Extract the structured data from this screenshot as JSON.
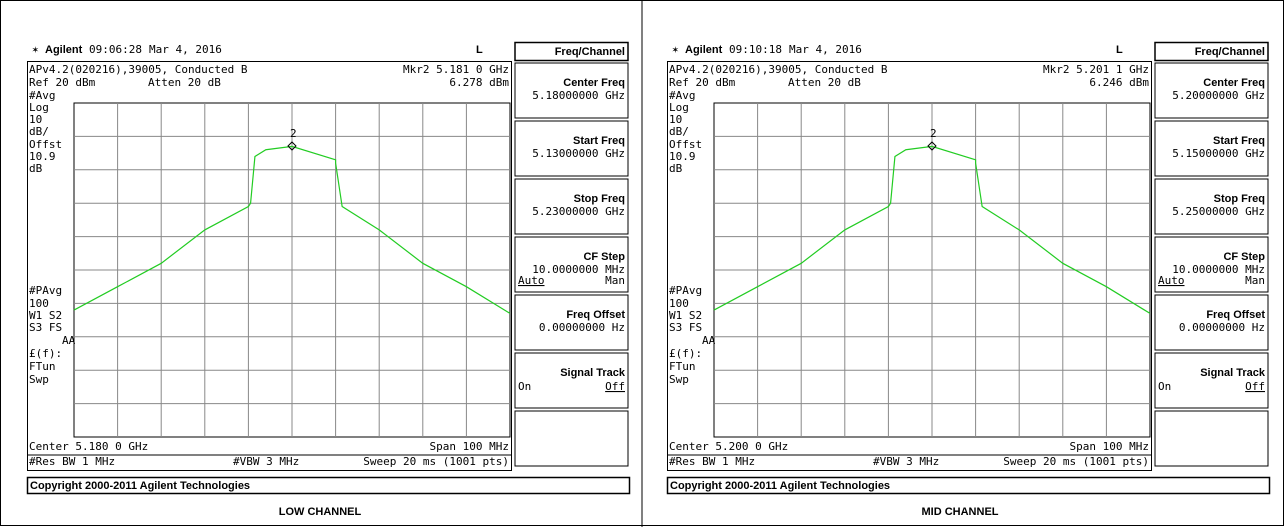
{
  "panels": [
    {
      "header": {
        "brand": "Agilent",
        "time": "09:06:28",
        "date": "Mar 4, 2016",
        "mode": "L"
      },
      "info": {
        "title": "APv4.2(020216),39005, Conducted B",
        "marker": "Mkr2  5.181 0 GHz",
        "ref": "Ref 20 dBm",
        "atten": "Atten 20 dB",
        "marker_value": "6.278 dBm"
      },
      "side_labels": [
        "#Avg",
        "Log",
        "10",
        "dB/",
        "Offst",
        "10.9",
        "dB",
        "#PAvg",
        "100",
        "W1  S2",
        "S3  FS",
        "AA",
        "£(f):",
        "FTun",
        "Swp"
      ],
      "marker_label": "2",
      "footer": {
        "center": "Center 5.180 0 GHz",
        "span": "Span 100 MHz",
        "res_bw": "#Res BW 1 MHz",
        "vbw": "#VBW 3 MHz",
        "sweep": "Sweep 20 ms (1001 pts)"
      },
      "softkeys": {
        "title": "Freq/Channel",
        "keys": [
          {
            "label": "Center Freq",
            "value": "5.18000000 GHz"
          },
          {
            "label": "Start Freq",
            "value": "5.13000000 GHz"
          },
          {
            "label": "Stop Freq",
            "value": "5.23000000 GHz"
          },
          {
            "label": "CF Step",
            "value": "10.0000000 MHz",
            "options": [
              "Auto",
              "Man"
            ]
          },
          {
            "label": "Freq Offset",
            "value": "0.00000000  Hz"
          },
          {
            "label": "Signal Track",
            "options": [
              "On",
              "Off"
            ]
          }
        ]
      },
      "copyright": "Copyright 2000-2011 Agilent Technologies",
      "caption": "LOW CHANNEL"
    },
    {
      "header": {
        "brand": "Agilent",
        "time": "09:10:18",
        "date": "Mar 4, 2016",
        "mode": "L"
      },
      "info": {
        "title": "APv4.2(020216),39005, Conducted B",
        "marker": "Mkr2  5.201 1 GHz",
        "ref": "Ref 20 dBm",
        "atten": "Atten 20 dB",
        "marker_value": "6.246 dBm"
      },
      "side_labels": [
        "#Avg",
        "Log",
        "10",
        "dB/",
        "Offst",
        "10.9",
        "dB",
        "#PAvg",
        "100",
        "W1  S2",
        "S3  FS",
        "AA",
        "£(f):",
        "FTun",
        "Swp"
      ],
      "marker_label": "2",
      "footer": {
        "center": "Center 5.200 0 GHz",
        "span": "Span 100 MHz",
        "res_bw": "#Res BW 1 MHz",
        "vbw": "#VBW 3 MHz",
        "sweep": "Sweep 20 ms (1001 pts)"
      },
      "softkeys": {
        "title": "Freq/Channel",
        "keys": [
          {
            "label": "Center Freq",
            "value": "5.20000000 GHz"
          },
          {
            "label": "Start Freq",
            "value": "5.15000000 GHz"
          },
          {
            "label": "Stop Freq",
            "value": "5.25000000 GHz"
          },
          {
            "label": "CF Step",
            "value": "10.0000000 MHz",
            "options": [
              "Auto",
              "Man"
            ]
          },
          {
            "label": "Freq Offset",
            "value": "0.00000000  Hz"
          },
          {
            "label": "Signal Track",
            "options": [
              "On",
              "Off"
            ]
          }
        ]
      },
      "copyright": "Copyright 2000-2011 Agilent Technologies",
      "caption": "MID CHANNEL"
    }
  ]
}
